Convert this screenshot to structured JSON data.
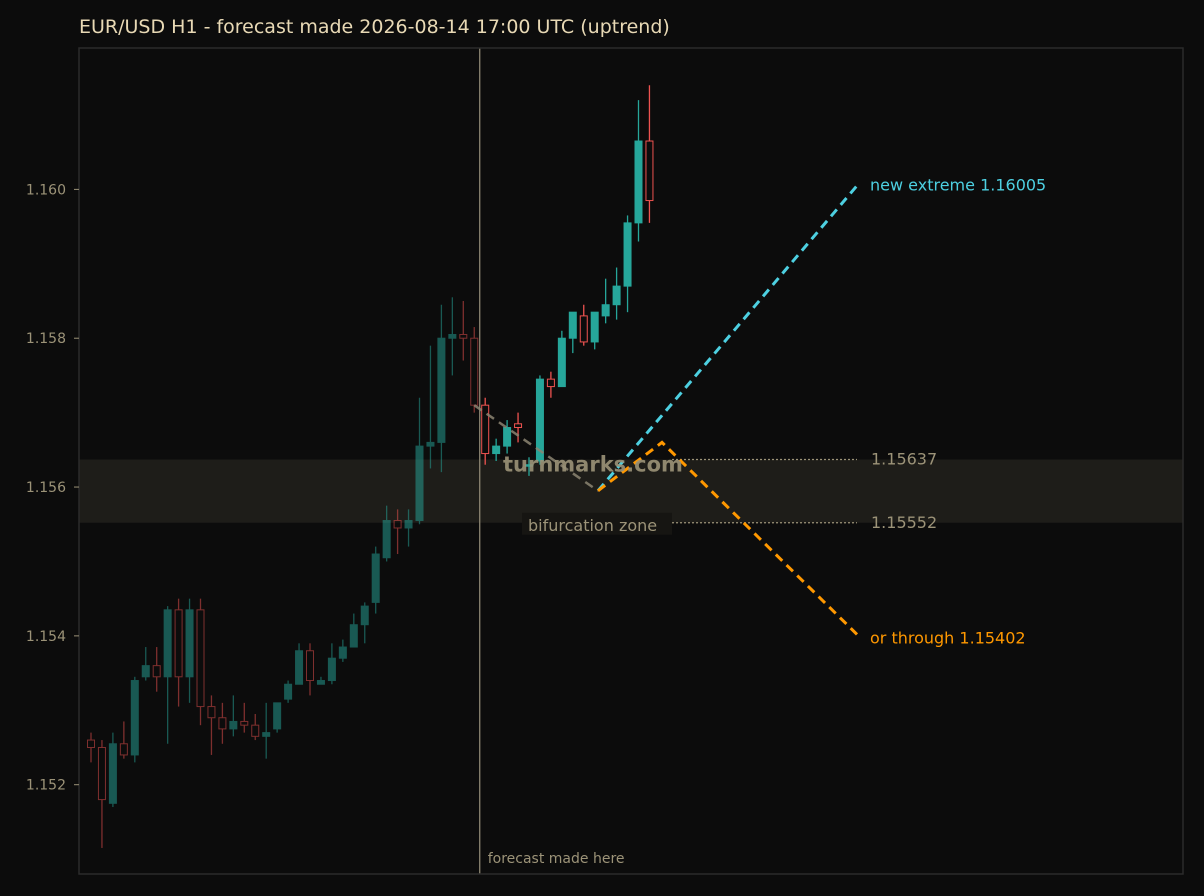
{
  "chart_data": {
    "type": "candlestick",
    "title": "EUR/USD H1 - forecast made 2026-08-14 17:00 UTC (uptrend)",
    "ylim": [
      1.1508,
      1.1619
    ],
    "y_ticks": [
      "1.152",
      "1.154",
      "1.156",
      "1.158",
      "1.160"
    ],
    "grid": false,
    "candles_before_forecast": [
      {
        "o": 1.1526,
        "h": 1.1527,
        "l": 1.1523,
        "c": 1.1525
      },
      {
        "o": 1.1525,
        "h": 1.1526,
        "l": 1.15115,
        "c": 1.1518
      },
      {
        "o": 1.15175,
        "h": 1.1527,
        "l": 1.1517,
        "c": 1.15255
      },
      {
        "o": 1.15255,
        "h": 1.15285,
        "l": 1.15235,
        "c": 1.1524
      },
      {
        "o": 1.1524,
        "h": 1.15345,
        "l": 1.1523,
        "c": 1.1534
      },
      {
        "o": 1.15345,
        "h": 1.15385,
        "l": 1.1534,
        "c": 1.1536
      },
      {
        "o": 1.1536,
        "h": 1.15385,
        "l": 1.15325,
        "c": 1.15345
      },
      {
        "o": 1.15345,
        "h": 1.1544,
        "l": 1.15255,
        "c": 1.15435
      },
      {
        "o": 1.15435,
        "h": 1.1545,
        "l": 1.15305,
        "c": 1.15345
      },
      {
        "o": 1.15345,
        "h": 1.1545,
        "l": 1.1531,
        "c": 1.15435
      },
      {
        "o": 1.15435,
        "h": 1.1545,
        "l": 1.1528,
        "c": 1.15305
      },
      {
        "o": 1.15305,
        "h": 1.1532,
        "l": 1.1524,
        "c": 1.1529
      },
      {
        "o": 1.1529,
        "h": 1.1531,
        "l": 1.15255,
        "c": 1.15275
      },
      {
        "o": 1.15275,
        "h": 1.1532,
        "l": 1.15265,
        "c": 1.15285
      },
      {
        "o": 1.15285,
        "h": 1.1531,
        "l": 1.1527,
        "c": 1.1528
      },
      {
        "o": 1.1528,
        "h": 1.15295,
        "l": 1.1526,
        "c": 1.15265
      },
      {
        "o": 1.15265,
        "h": 1.1531,
        "l": 1.15235,
        "c": 1.1527
      },
      {
        "o": 1.15275,
        "h": 1.1531,
        "l": 1.1527,
        "c": 1.1531
      },
      {
        "o": 1.15315,
        "h": 1.1534,
        "l": 1.1531,
        "c": 1.15335
      },
      {
        "o": 1.15335,
        "h": 1.1539,
        "l": 1.15335,
        "c": 1.1538
      },
      {
        "o": 1.1538,
        "h": 1.1539,
        "l": 1.1532,
        "c": 1.1534
      },
      {
        "o": 1.15335,
        "h": 1.15345,
        "l": 1.15335,
        "c": 1.1534
      },
      {
        "o": 1.1534,
        "h": 1.1539,
        "l": 1.15335,
        "c": 1.1537
      },
      {
        "o": 1.1537,
        "h": 1.15395,
        "l": 1.15365,
        "c": 1.15385
      },
      {
        "o": 1.15385,
        "h": 1.1543,
        "l": 1.15385,
        "c": 1.15415
      },
      {
        "o": 1.15415,
        "h": 1.15445,
        "l": 1.1539,
        "c": 1.1544
      },
      {
        "o": 1.15445,
        "h": 1.1552,
        "l": 1.1543,
        "c": 1.1551
      },
      {
        "o": 1.15505,
        "h": 1.15575,
        "l": 1.155,
        "c": 1.15555
      },
      {
        "o": 1.15555,
        "h": 1.1557,
        "l": 1.1551,
        "c": 1.15545
      },
      {
        "o": 1.15545,
        "h": 1.1557,
        "l": 1.1552,
        "c": 1.15555
      },
      {
        "o": 1.15555,
        "h": 1.1572,
        "l": 1.1555,
        "c": 1.15655
      },
      {
        "o": 1.15655,
        "h": 1.1579,
        "l": 1.15625,
        "c": 1.1566
      },
      {
        "o": 1.1566,
        "h": 1.15845,
        "l": 1.1562,
        "c": 1.158
      },
      {
        "o": 1.158,
        "h": 1.15855,
        "l": 1.1575,
        "c": 1.15805
      },
      {
        "o": 1.15805,
        "h": 1.1585,
        "l": 1.1577,
        "c": 1.158
      },
      {
        "o": 1.158,
        "h": 1.15815,
        "l": 1.157,
        "c": 1.1571
      }
    ],
    "candles_after_forecast": [
      {
        "o": 1.1571,
        "h": 1.1572,
        "l": 1.1563,
        "c": 1.15645
      },
      {
        "o": 1.15645,
        "h": 1.15665,
        "l": 1.15635,
        "c": 1.15655
      },
      {
        "o": 1.15655,
        "h": 1.1569,
        "l": 1.15645,
        "c": 1.1568
      },
      {
        "o": 1.15685,
        "h": 1.157,
        "l": 1.1566,
        "c": 1.1568
      },
      {
        "o": 1.1563,
        "h": 1.1564,
        "l": 1.15615,
        "c": 1.1563
      },
      {
        "o": 1.15635,
        "h": 1.1575,
        "l": 1.1563,
        "c": 1.15745
      },
      {
        "o": 1.15745,
        "h": 1.15755,
        "l": 1.1572,
        "c": 1.15735
      },
      {
        "o": 1.15735,
        "h": 1.1581,
        "l": 1.15735,
        "c": 1.158
      },
      {
        "o": 1.158,
        "h": 1.15835,
        "l": 1.1578,
        "c": 1.15835
      },
      {
        "o": 1.1583,
        "h": 1.15845,
        "l": 1.1579,
        "c": 1.15795
      },
      {
        "o": 1.15795,
        "h": 1.15835,
        "l": 1.15785,
        "c": 1.15835
      },
      {
        "o": 1.1583,
        "h": 1.1588,
        "l": 1.1582,
        "c": 1.15845
      },
      {
        "o": 1.15845,
        "h": 1.15895,
        "l": 1.15825,
        "c": 1.1587
      },
      {
        "o": 1.1587,
        "h": 1.15965,
        "l": 1.15835,
        "c": 1.15955
      },
      {
        "o": 1.15955,
        "h": 1.1612,
        "l": 1.1593,
        "c": 1.16065
      },
      {
        "o": 1.16065,
        "h": 1.1614,
        "l": 1.15955,
        "c": 1.15985
      }
    ],
    "forecast_start_price": 1.1571,
    "pivot_price": 1.15595,
    "bear_peak_price": 1.1566,
    "bull_path": {
      "label": "new extreme",
      "value": "1.16005",
      "target": 1.16005
    },
    "bear_path": {
      "label": "or through",
      "value": "1.15402",
      "target": 1.15402
    },
    "zone": {
      "label": "bifurcation zone",
      "upper": 1.15637,
      "lower": 1.15552,
      "upper_label": "1.15637",
      "lower_label": "1.15552"
    },
    "forecast_marker_label": "forecast made here",
    "watermark": "turnmarks.com",
    "colors": {
      "up": "#26a69a",
      "down": "#ef5350",
      "bull": "#4dd0e1",
      "bear": "#ff9800",
      "zone": "#1e1d19",
      "axis": "#2b2b2b",
      "text": "#9c9378",
      "title": "#e8d9b5",
      "marker": "#8c8572",
      "connector": "#8c8572"
    }
  }
}
